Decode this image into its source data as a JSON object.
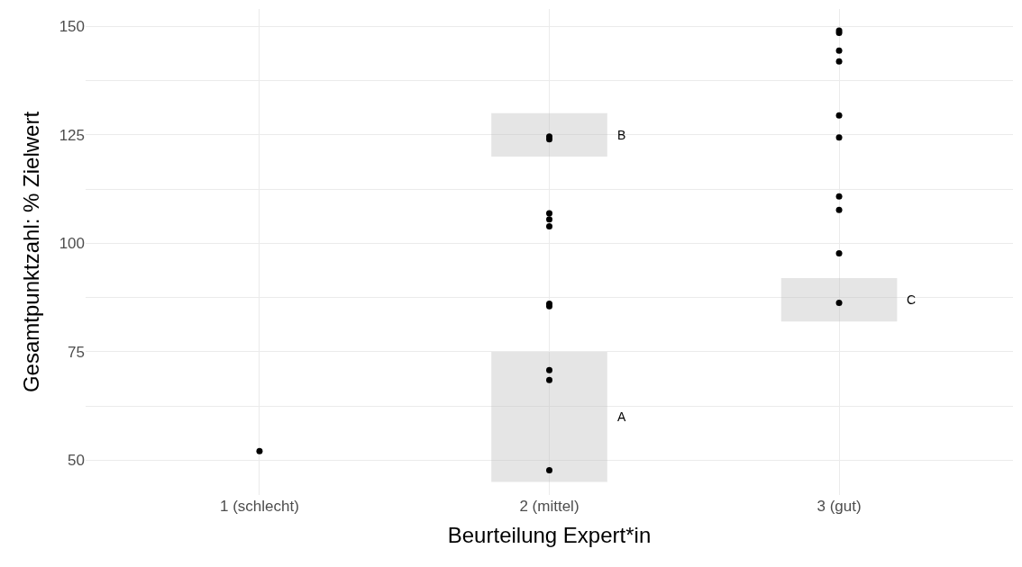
{
  "chart_data": {
    "type": "scatter",
    "xlabel": "Beurteilung Expert*in",
    "ylabel": "Gesamtpunktzahl: % Zielwert",
    "categories": [
      "1 (schlecht)",
      "2 (mittel)",
      "3 (gut)"
    ],
    "series": [
      {
        "color": "#000000",
        "x": [
          "1 (schlecht)",
          "2 (mittel)",
          "2 (mittel)",
          "2 (mittel)",
          "2 (mittel)",
          "2 (mittel)",
          "2 (mittel)",
          "2 (mittel)",
          "2 (mittel)",
          "2 (mittel)",
          "2 (mittel)",
          "3 (gut)",
          "3 (gut)",
          "3 (gut)",
          "3 (gut)",
          "3 (gut)",
          "3 (gut)",
          "3 (gut)",
          "3 (gut)",
          "3 (gut)",
          "3 (gut)"
        ],
        "values": [
          52.1,
          124.6,
          124.0,
          106.9,
          105.5,
          103.9,
          86.1,
          85.5,
          70.8,
          68.5,
          47.7,
          149.0,
          148.5,
          144.4,
          141.9,
          129.5,
          124.4,
          110.8,
          107.7,
          97.7,
          86.3
        ]
      },
      {
        "type": "bar",
        "color": "#bfbfbf",
        "values": [
          null,
          30,
          null
        ],
        "base": [
          null,
          45,
          null
        ]
      },
      {
        "type": "bar",
        "color": "#bfbfbf",
        "values": [
          null,
          10,
          null
        ],
        "base": [
          null,
          120,
          null
        ]
      },
      {
        "type": "bar",
        "color": "#bfbfbf",
        "values": [
          null,
          null,
          10
        ],
        "base": [
          null,
          null,
          82
        ]
      }
    ],
    "annotations": [
      "A",
      "B",
      "C"
    ],
    "ylim": [
      42,
      154
    ],
    "yticks": [
      50,
      {
        "value": 62.5,
        "label": null
      },
      75,
      {
        "value": 87.5,
        "label": null
      },
      100,
      {
        "value": 112.5,
        "label": null
      },
      125,
      {
        "value": 137.5,
        "label": null
      },
      150
    ],
    "grid": true,
    "marker": "circle"
  }
}
